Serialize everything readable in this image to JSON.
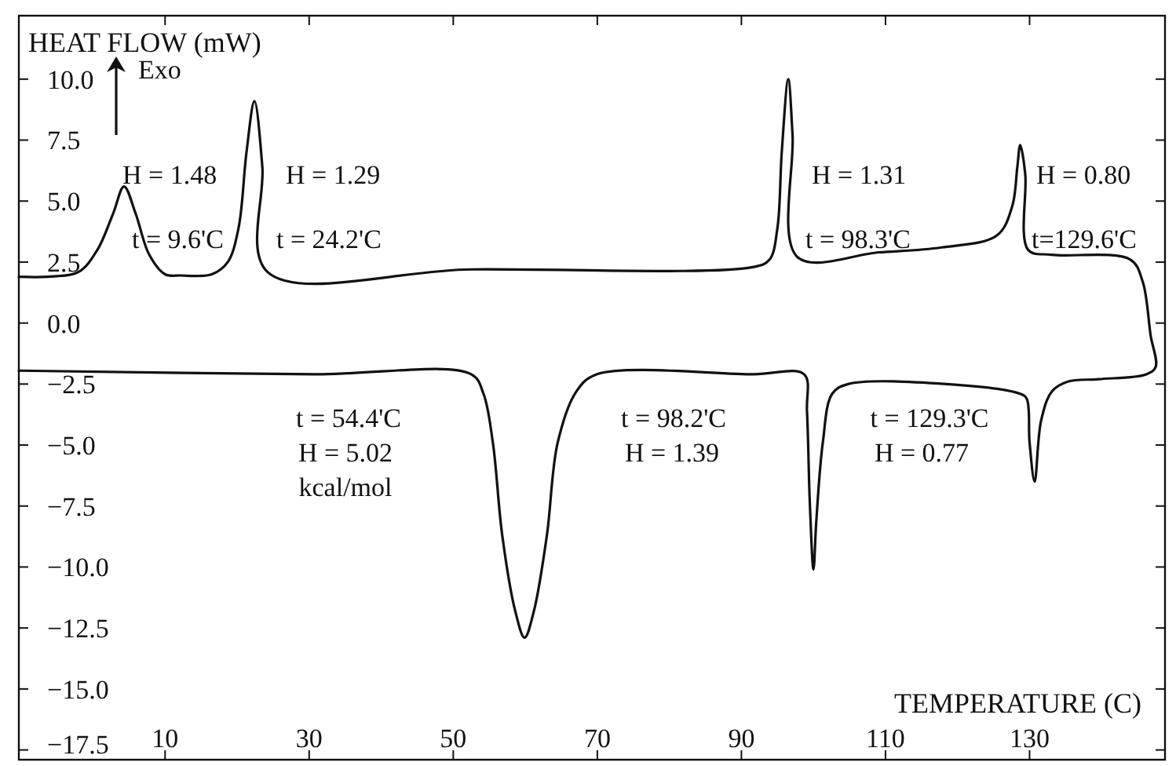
{
  "chart_data": {
    "type": "line",
    "title": "HEAT FLOW (mW)",
    "xlabel": "TEMPERATURE (C)",
    "xlim": [
      -10.3,
      148.8
    ],
    "ylim": [
      -17.9,
      12.6
    ],
    "xticks": [
      10,
      30,
      50,
      70,
      90,
      110,
      130
    ],
    "yticks": [
      {
        "value": 10,
        "label": "10.0"
      },
      {
        "value": 7.5,
        "label": "7.5"
      },
      {
        "value": 5,
        "label": "5.0"
      },
      {
        "value": 2.5,
        "label": "2.5"
      },
      {
        "value": 0,
        "label": "0.0"
      },
      {
        "value": -2.5,
        "label": "−2.5"
      },
      {
        "value": -5,
        "label": "−5.0"
      },
      {
        "value": -7.5,
        "label": "−7.5"
      },
      {
        "value": -10,
        "label": "−10.0"
      },
      {
        "value": -12.5,
        "label": "−12.5"
      },
      {
        "value": -15,
        "label": "−15.0"
      },
      {
        "value": -17.5,
        "label": "−17.5"
      }
    ],
    "grid": false,
    "marker": "none",
    "line_style": "solid",
    "series": [
      {
        "color": "#111111",
        "x": [
          -10.3,
          -6.3,
          -2.0,
          0.6,
          2.8,
          4.3,
          5.9,
          7.8,
          10.0,
          12.2,
          16.5,
          18.7,
          20.2,
          21.3,
          22.4,
          23.5,
          24.2,
          52.5,
          91.7,
          93.9,
          95.0,
          95.6,
          96.5,
          97.1,
          97.8,
          109.1,
          117.8,
          125.5,
          127.6,
          128.3,
          128.7,
          129.4,
          129.8,
          133.1,
          144.0,
          145.7,
          146.8,
          147.5,
          146.2,
          139.6,
          135.3,
          133.1,
          131.6,
          130.7,
          130.0,
          129.6,
          128.7,
          118.5,
          104.8,
          102.6,
          101.3,
          100.4,
          100.0,
          99.5,
          99.1,
          98.7,
          91.7,
          69.9,
          67.1,
          64.5,
          63.0,
          61.2,
          59.9,
          58.6,
          56.8,
          55.5,
          54.2,
          52.5,
          30.7,
          -10.3
        ],
        "values": [
          1.9,
          1.9,
          2.1,
          3.0,
          4.5,
          5.6,
          4.5,
          2.8,
          2.0,
          1.95,
          2.0,
          2.5,
          3.9,
          7.0,
          9.1,
          6.4,
          2.1,
          2.2,
          2.3,
          2.6,
          3.9,
          7.0,
          10.0,
          7.7,
          2.7,
          2.9,
          3.1,
          3.6,
          4.8,
          6.4,
          7.3,
          6.1,
          3.0,
          2.8,
          2.6,
          1.7,
          -0.5,
          -1.8,
          -2.1,
          -2.3,
          -2.4,
          -2.8,
          -4.0,
          -6.5,
          -4.9,
          -3.1,
          -2.9,
          -2.5,
          -2.5,
          -2.9,
          -4.9,
          -8.1,
          -10.1,
          -7.4,
          -3.6,
          -2.1,
          -2.1,
          -2.1,
          -2.8,
          -4.9,
          -8.7,
          -11.8,
          -12.9,
          -11.8,
          -8.7,
          -4.9,
          -2.9,
          -2.1,
          -2.1,
          -1.95
        ]
      }
    ],
    "annotations": [
      "H = 1.48",
      "t = 9.6'C",
      "H = 1.29",
      "t = 24.2'C",
      "H = 1.31",
      "t = 98.3'C",
      "H = 0.80",
      "t=129.6'C",
      "t = 54.4'C",
      "H = 5.02",
      "kcal/mol",
      "t = 98.2'C",
      "H = 1.39",
      "t = 129.3'C",
      "H = 0.77",
      "Exo"
    ]
  }
}
